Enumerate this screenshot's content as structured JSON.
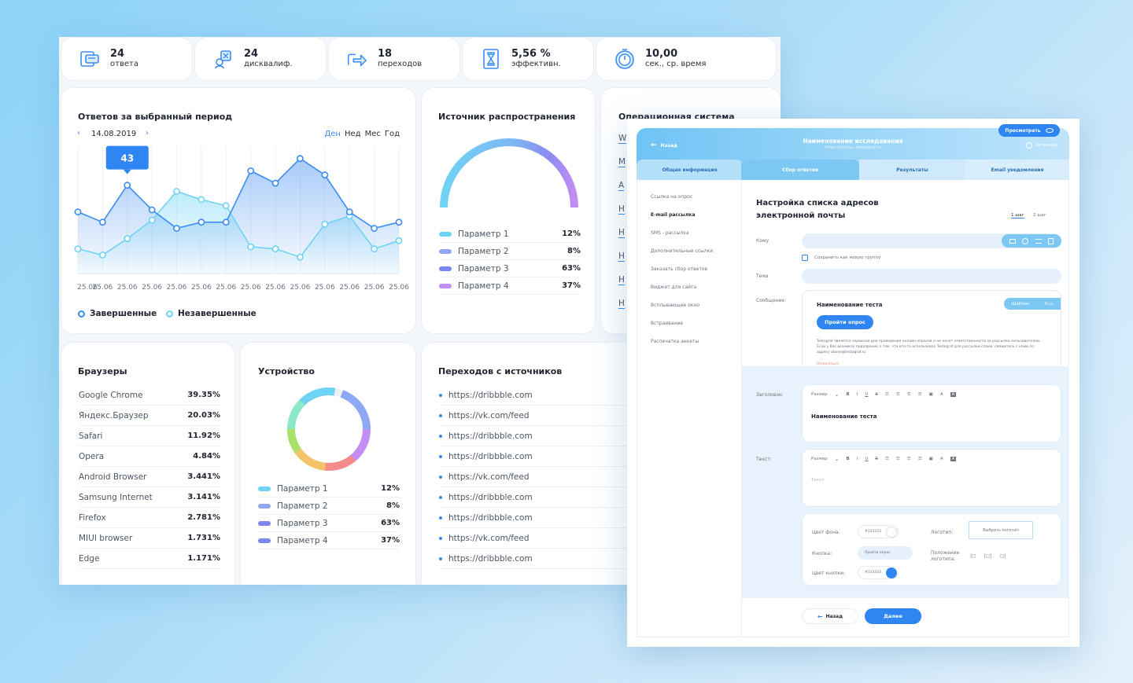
{
  "stats": [
    {
      "value": "24",
      "label": "ответа",
      "icon": "answers-icon"
    },
    {
      "value": "24",
      "label": "дисквалиф.",
      "icon": "disqualified-icon"
    },
    {
      "value": "18",
      "label": "переходов",
      "icon": "transitions-icon"
    },
    {
      "value": "5,56 %",
      "label": "эффективн.",
      "icon": "efficiency-icon"
    },
    {
      "value": "10,00",
      "label": "сек., ср. время",
      "icon": "timer-icon"
    }
  ],
  "responses": {
    "title": "Ответов за выбранный период",
    "date": "14.08.2019",
    "periods": [
      "Ден",
      "Нед",
      "Мес",
      "Год"
    ],
    "tooltip": "43",
    "legend_completed": "Завершенные",
    "legend_incomplete": "Незавершенные"
  },
  "chart_data": {
    "type": "area",
    "title": "Ответов за выбранный период",
    "categories": [
      "25.06",
      "25.06",
      "25.06",
      "25.06",
      "25.06",
      "25.06",
      "25.06",
      "25.06",
      "25.06",
      "25.06",
      "25.06",
      "25.06",
      "25.06",
      "25.06"
    ],
    "series": [
      {
        "name": "Завершенные",
        "values": [
          30,
          25,
          43,
          31,
          22,
          25,
          25,
          50,
          44,
          56,
          48,
          30,
          22,
          25
        ],
        "color": "#3b8cf0"
      },
      {
        "name": "Незавершенные",
        "values": [
          12,
          9,
          17,
          26,
          40,
          36,
          33,
          13,
          12,
          8,
          24,
          28,
          12,
          16
        ],
        "color": "#6fd3f5"
      }
    ],
    "ylim": [
      0,
      62
    ]
  },
  "source": {
    "title": "Источник распространения",
    "items": [
      {
        "label": "Параметр 1",
        "pct": "12%",
        "color": "#6fd3f5"
      },
      {
        "label": "Параметр 2",
        "pct": "8%",
        "color": "#8fa8f5"
      },
      {
        "label": "Параметр 3",
        "pct": "63%",
        "color": "#7b86f0"
      },
      {
        "label": "Параметр 4",
        "pct": "37%",
        "color": "#c28df5"
      }
    ]
  },
  "os": {
    "title": "Операционная система",
    "initials": [
      "W",
      "M",
      "A",
      "H",
      "H",
      "H",
      "H",
      "H"
    ]
  },
  "browsers": {
    "title": "Браузеры",
    "items": [
      {
        "name": "Google Chrome",
        "pct": "39.35%"
      },
      {
        "name": "Яндекс.Браузер",
        "pct": "20.03%"
      },
      {
        "name": "Safari",
        "pct": "11.92%"
      },
      {
        "name": "Opera",
        "pct": "4.84%"
      },
      {
        "name": "Android Browser",
        "pct": "3.441%"
      },
      {
        "name": "Samsung Internet",
        "pct": "3.141%"
      },
      {
        "name": "Firefox",
        "pct": "2.781%"
      },
      {
        "name": "MIUI browser",
        "pct": "1.731%"
      },
      {
        "name": "Edge",
        "pct": "1.171%"
      }
    ]
  },
  "devices": {
    "title": "Устройство",
    "items": [
      {
        "label": "Параметр 1",
        "pct": "12%",
        "color": "#6fd3f5"
      },
      {
        "label": "Параметр 2",
        "pct": "8%",
        "color": "#8fa8f5"
      },
      {
        "label": "Параметр 3",
        "pct": "63%",
        "color": "#7b86f0"
      },
      {
        "label": "Параметр 4",
        "pct": "37%",
        "color": "#7b86f0"
      }
    ]
  },
  "referrals": {
    "title": "Переходов с источников",
    "links": [
      "https://dribbble.com",
      "https://vk.com/feed",
      "https://dribbble.com",
      "https://dribbble.com",
      "https://vk.com/feed",
      "https://dribbble.com",
      "https://dribbble.com",
      "https://vk.com/feed",
      "https://dribbble.com"
    ]
  },
  "editor": {
    "back": "Назад",
    "study_name": "Наименование исследования",
    "study_url": "https://vivyvu.testograf.ru",
    "preview": "Просмотреть",
    "active": "Активный",
    "tabs": [
      "Общая информация",
      "Сбор ответов",
      "Результаты",
      "Email уведомления"
    ],
    "sidebar": [
      "Ссылка на опрос",
      "E-mail рассылка",
      "SMS - рассылка",
      "Дополнительные ссылки",
      "Заказать сбор ответов",
      "Виджет для сайта",
      "Всплывающее окно",
      "Встраивание",
      "Распечатка анкеты"
    ],
    "heading_line1": "Настройка списка адресов",
    "heading_line2": "электронной почты",
    "step1": "1 шаг",
    "step2": "2 шаг",
    "to_label": "Кому",
    "save_group": "Сохранить как новую группу",
    "subject_label": "Тема",
    "message_label": "Сообщение:",
    "template_name": "Наименование теста",
    "template_tab1": "Шаблон",
    "template_tab2": "Код",
    "take_survey": "Пройти опрос",
    "disclaimer": "Testograf является сервисом для проведения онлайн опросов и не несет ответственности за рассылки пользователей. Если у Вас возникло подозрение о том, что кто-то использовал Testograf для рассылки спама, свяжитесь с нами по адресу abuse@testograf.ru",
    "unsubscribe": "Отписаться",
    "header_label": "Заголовок:",
    "size": "Размер",
    "header_content": "Наименование теста",
    "text_label": "Текст:",
    "text_placeholder": "Текст",
    "bg_color_label": "Цвет фона:",
    "bg_color_value": "#333333",
    "button_label": "Кнопка:",
    "button_value": "Пройти опрос",
    "button_color_label": "Цвет кнопки:",
    "button_color_value": "#333333",
    "logo_label": "Логотип:",
    "logo_button": "Выбрать логотип",
    "logo_position_label": "Положение логотипа:",
    "back_button": "Назад",
    "next_button": "Далее"
  }
}
